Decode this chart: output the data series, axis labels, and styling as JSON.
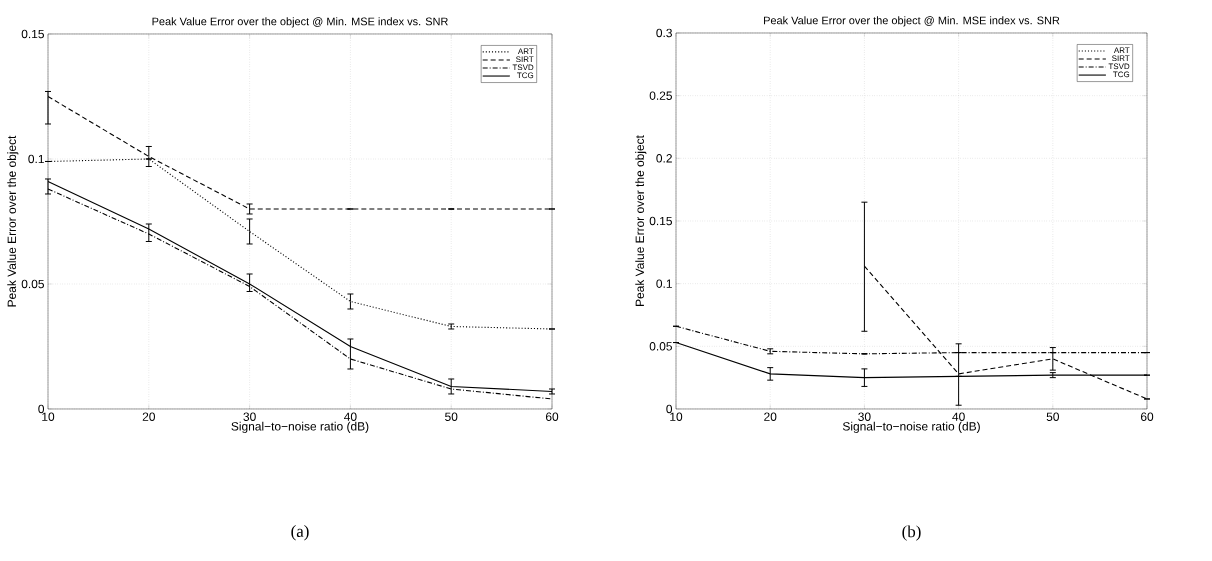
{
  "chart_data": [
    {
      "type": "line",
      "title": "Peak Value Error over the object @ Min. MSE index vs. SNR",
      "xlabel": "Signal−to−noise ratio (dB)",
      "ylabel": "Peak Value Error over the object",
      "annotations": [
        "(a)"
      ],
      "x": [
        10,
        20,
        30,
        40,
        50,
        60
      ],
      "xlim": [
        10,
        60
      ],
      "ylim": [
        0,
        0.15
      ],
      "xticks": [
        10,
        20,
        30,
        40,
        50,
        60
      ],
      "yticks": [
        0,
        0.05,
        0.1,
        0.15
      ],
      "grid": true,
      "legend": "top right",
      "series": [
        {
          "name": "ART",
          "color": "#000000",
          "line_style": "dotted",
          "values": [
            0.099,
            0.1,
            0.071,
            0.043,
            0.033,
            0.032
          ],
          "errors": [
            null,
            null,
            0.005,
            0.003,
            0.001,
            null
          ]
        },
        {
          "name": "SIRT",
          "color": "#000000",
          "line_style": "dashed",
          "values": [
            0.125,
            0.101,
            0.08,
            0.08,
            0.08,
            0.08
          ],
          "errors": [
            [
              0.114,
              0.127
            ],
            0.004,
            0.002,
            null,
            null,
            null
          ]
        },
        {
          "name": "TSVD",
          "color": "#000000",
          "line_style": "dashdot",
          "values": [
            0.088,
            0.07,
            0.049,
            0.02,
            0.008,
            0.004
          ]
        },
        {
          "name": "TCG",
          "color": "#000000",
          "line_style": "solid",
          "values": [
            0.091,
            0.072,
            0.05,
            0.025,
            0.009,
            0.007
          ],
          "errors": [
            [
              0.086,
              0.092
            ],
            [
              0.067,
              0.074
            ],
            [
              0.047,
              0.054
            ],
            [
              0.016,
              0.028
            ],
            [
              0.006,
              0.012
            ],
            0.001
          ]
        }
      ]
    },
    {
      "type": "line",
      "title": "Peak Value Error over the object @ Min. MSE index vs. SNR",
      "xlabel": "Signal−to−noise ratio (dB)",
      "ylabel": "Peak Value Error over the object",
      "annotations": [
        "(b)"
      ],
      "x": [
        10,
        20,
        30,
        40,
        50,
        60
      ],
      "xlim": [
        10,
        60
      ],
      "ylim": [
        0,
        0.3
      ],
      "xticks": [
        10,
        20,
        30,
        40,
        50,
        60
      ],
      "yticks": [
        0,
        0.05,
        0.1,
        0.15,
        0.2,
        0.25,
        0.3
      ],
      "grid": true,
      "legend": "top right",
      "series": [
        {
          "name": "ART",
          "color": "#000000",
          "line_style": "dotted",
          "values": [
            null,
            null,
            null,
            null,
            null,
            null
          ]
        },
        {
          "name": "SIRT",
          "color": "#000000",
          "line_style": "dashed",
          "values": [
            null,
            null,
            0.114,
            0.028,
            0.04,
            0.008
          ],
          "errors": [
            null,
            null,
            [
              0.062,
              0.165
            ],
            [
              0.003,
              0.052
            ],
            0.009,
            null
          ]
        },
        {
          "name": "TSVD",
          "color": "#000000",
          "line_style": "dashdot",
          "values": [
            0.066,
            0.046,
            0.044,
            0.045,
            0.045,
            0.045
          ],
          "errors": [
            null,
            0.002,
            null,
            null,
            null,
            null
          ]
        },
        {
          "name": "TCG",
          "color": "#000000",
          "line_style": "solid",
          "values": [
            0.053,
            0.028,
            0.025,
            0.026,
            0.027,
            0.027
          ],
          "errors": [
            null,
            0.005,
            0.007,
            null,
            0.002,
            null
          ]
        }
      ]
    }
  ]
}
